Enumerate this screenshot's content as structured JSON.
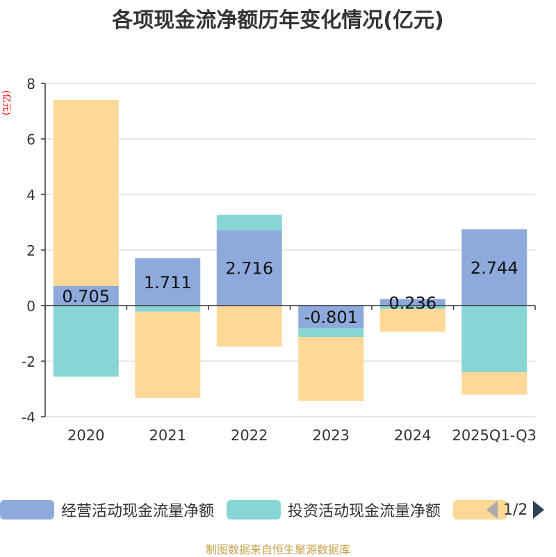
{
  "chart_data": {
    "type": "bar",
    "stacked": true,
    "title": "各项现金流净额历年变化情况(亿元)",
    "ylabel": "(亿元)",
    "xlabel": "",
    "ylim": [
      -4,
      8
    ],
    "yticks": [
      -4,
      -2,
      0,
      2,
      4,
      6,
      8
    ],
    "grid": true,
    "categories": [
      "2020",
      "2021",
      "2022",
      "2023",
      "2024",
      "2025Q1-Q3"
    ],
    "series": [
      {
        "name": "经营活动现金流量净额",
        "color": "#8eaadc",
        "values": [
          0.705,
          1.711,
          2.716,
          -0.801,
          0.236,
          2.744
        ],
        "show_labels": true
      },
      {
        "name": "投资活动现金流量净额",
        "color": "#88d5d6",
        "values": [
          -2.56,
          -0.22,
          0.55,
          -0.33,
          -0.12,
          -2.4
        ],
        "show_labels": false
      },
      {
        "name": "",
        "color": "#fdd896",
        "values": [
          6.7,
          -3.1,
          -1.47,
          -2.3,
          -0.82,
          -0.8
        ],
        "show_labels": false
      }
    ]
  },
  "legend": {
    "page_label": "1/2"
  },
  "footer": "制图数据来自恒生聚源数据库"
}
